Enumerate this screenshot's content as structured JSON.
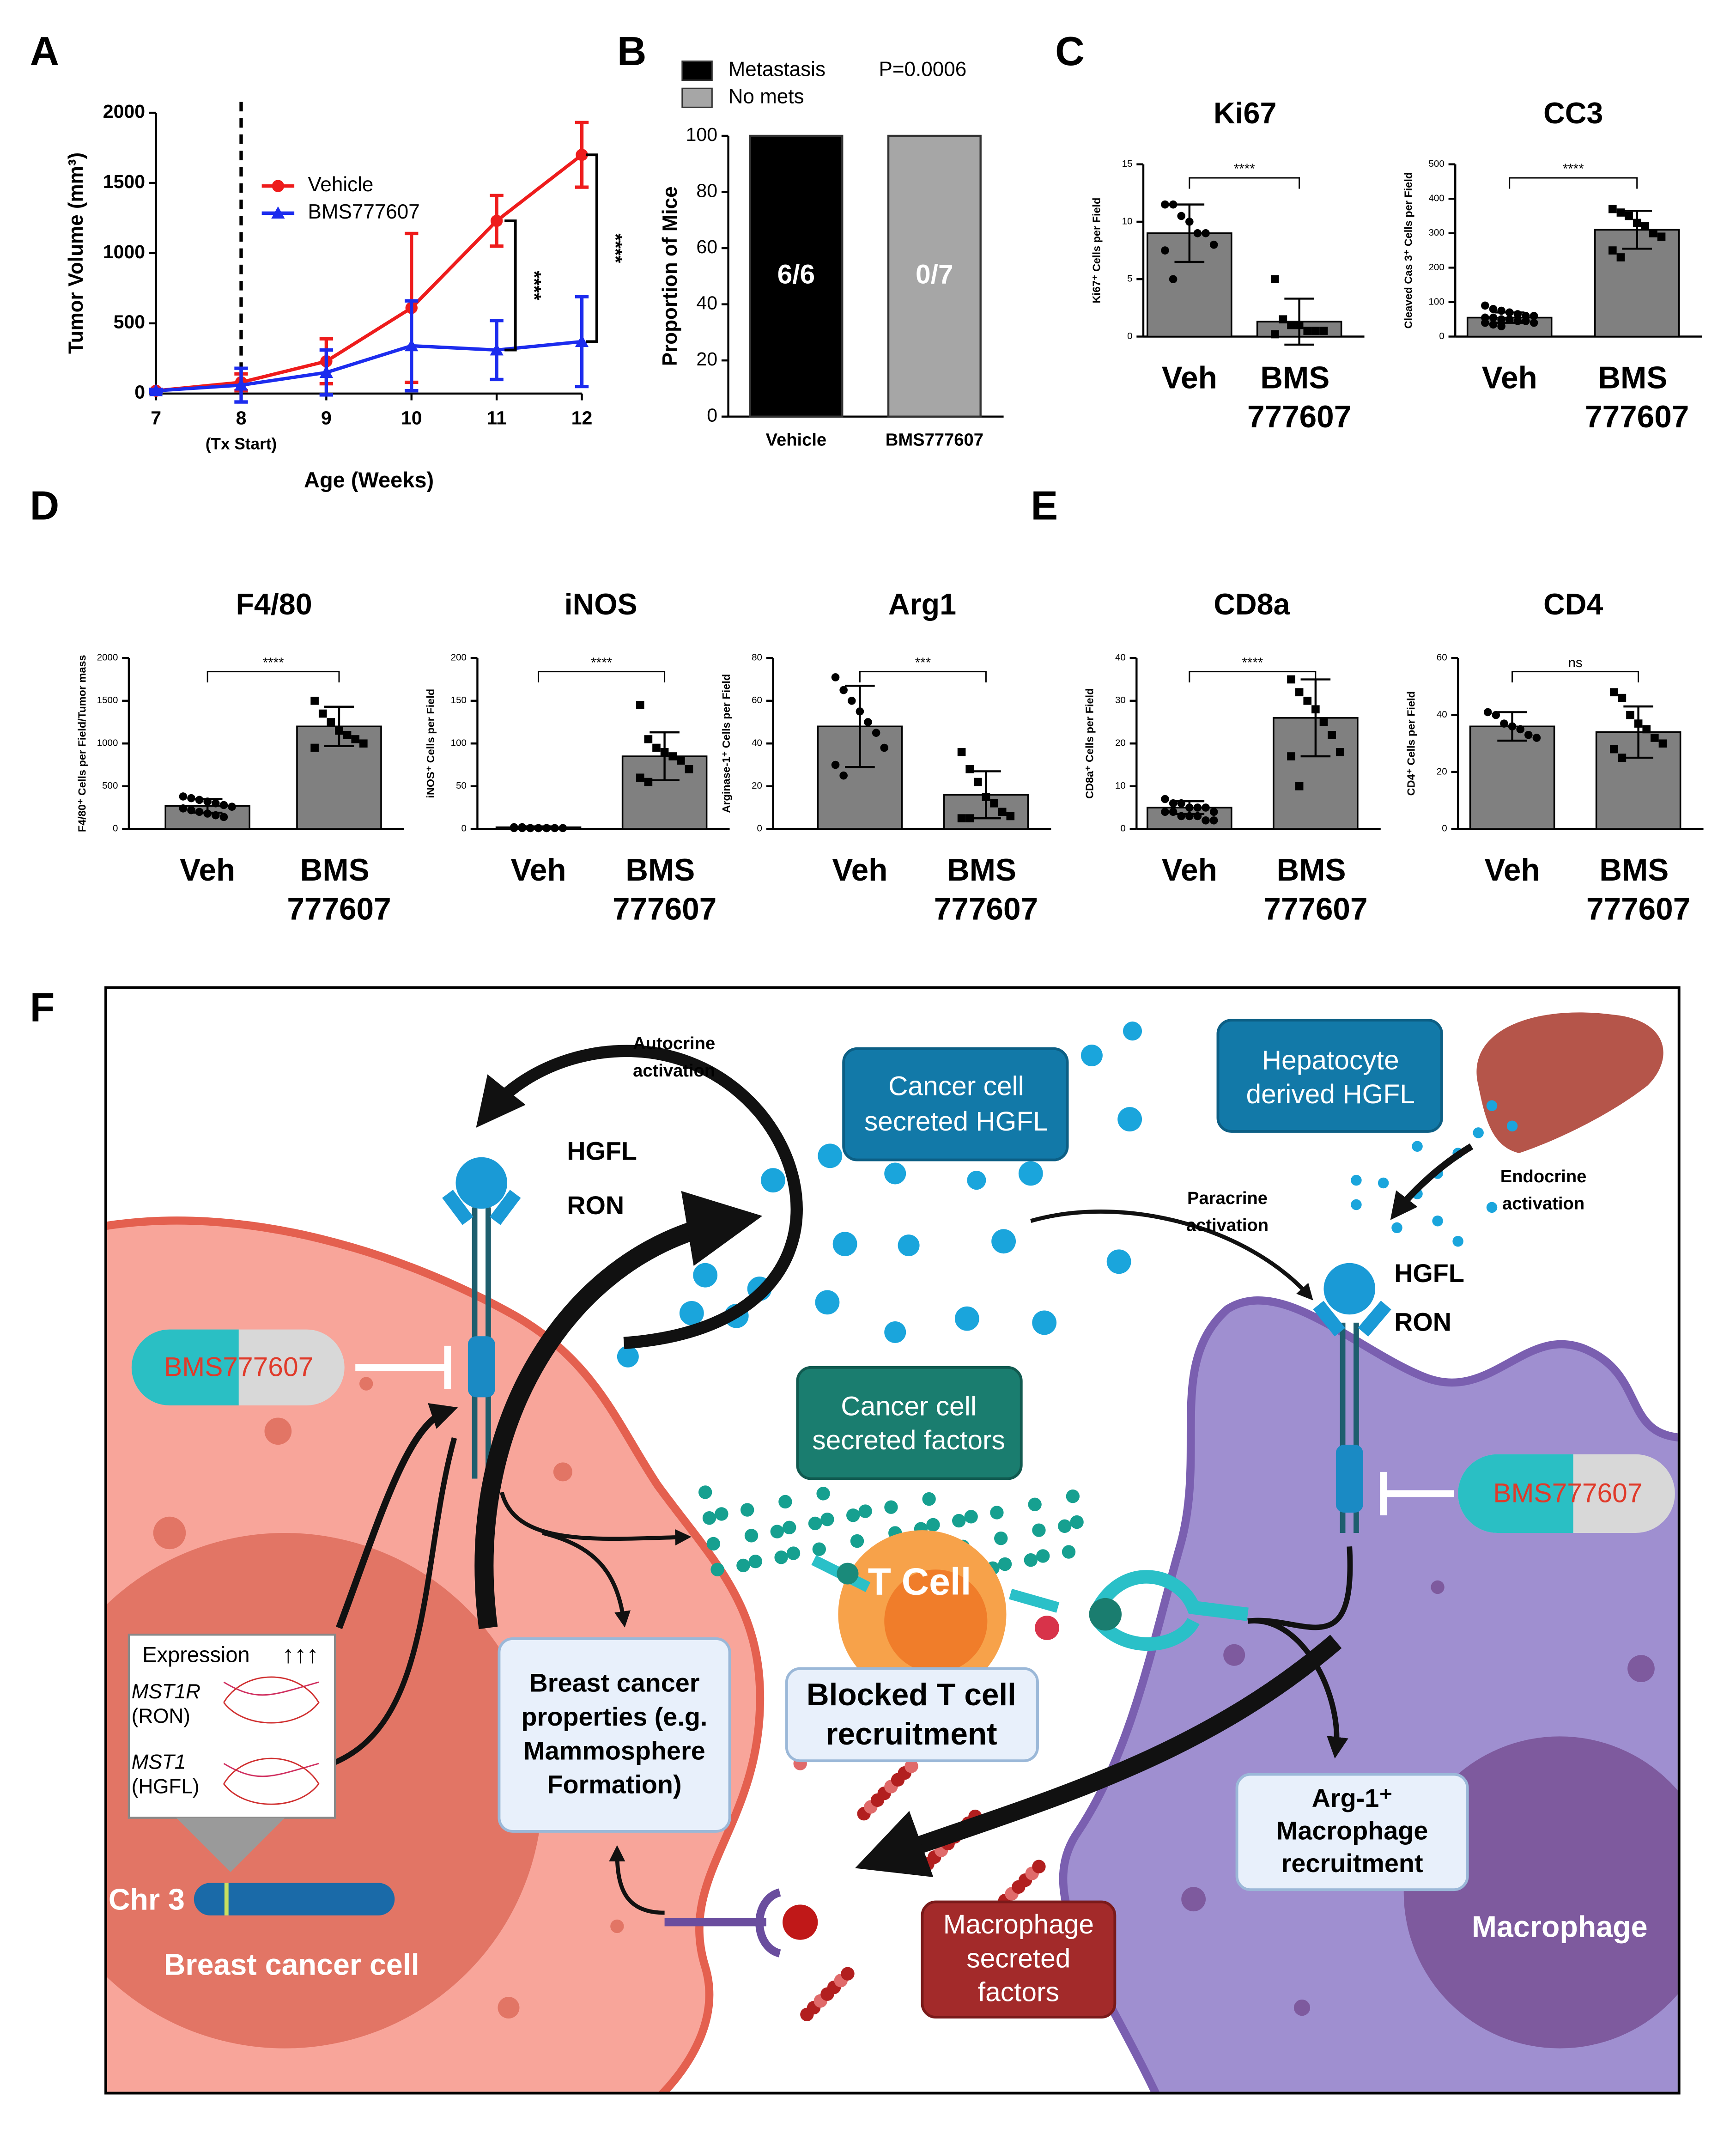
{
  "panel_labels": [
    "A",
    "B",
    "C",
    "D",
    "E",
    "F"
  ],
  "chart_data": [
    {
      "type": "line",
      "ylabel": "Tumor Volume (mm³)",
      "xlabel": "Age (Weeks)",
      "x": [
        7,
        8,
        9,
        10,
        11,
        12
      ],
      "xlim": [
        7,
        12
      ],
      "xticks": [
        7,
        8,
        9,
        10,
        11,
        12
      ],
      "ylim": [
        0,
        2000
      ],
      "yticks": [
        0,
        500,
        1000,
        1500,
        2000
      ],
      "annotations": [
        "(Tx Start)"
      ],
      "significance": [
        "****",
        "****"
      ],
      "series": [
        {
          "name": "Vehicle",
          "color": "#ee1c1c",
          "marker": "circle",
          "values": [
            20,
            80,
            230,
            610,
            1230,
            1700
          ],
          "errors": [
            10,
            60,
            160,
            530,
            180,
            230
          ]
        },
        {
          "name": "BMS777607",
          "color": "#1c2cee",
          "marker": "triangle",
          "values": [
            20,
            60,
            150,
            340,
            310,
            370
          ],
          "errors": [
            10,
            120,
            160,
            320,
            210,
            320
          ]
        }
      ]
    },
    {
      "type": "stacked_bar",
      "ylabel": "Proportion of Mice",
      "categories": [
        "Vehicle",
        "BMS777607"
      ],
      "ylim": [
        0,
        100
      ],
      "yticks": [
        0,
        20,
        40,
        60,
        80,
        100
      ],
      "annotations": [
        "P=0.0006"
      ],
      "bar_labels": [
        "6/6",
        "0/7"
      ],
      "series": [
        {
          "name": "Metastasis",
          "color": "#000000",
          "values": [
            100,
            0
          ]
        },
        {
          "name": "No mets",
          "color": "#a6a6a6",
          "values": [
            0,
            100
          ]
        }
      ]
    },
    {
      "type": "bar",
      "title": "Ki67",
      "ylabel": "Ki67⁺ Cells per Field",
      "categories": [
        "Veh",
        "BMS 777607"
      ],
      "color": "#808080",
      "values": [
        9,
        1.3
      ],
      "errors": [
        2.5,
        2
      ],
      "ylim": [
        0,
        15
      ],
      "yticks": [
        0,
        5,
        10,
        15
      ],
      "significance": "****",
      "points": [
        [
          11.5,
          11.5,
          10.5,
          10,
          9,
          9,
          8,
          7.5,
          5
        ],
        [
          5,
          1.5,
          1,
          1,
          0.5,
          0.5,
          0.5,
          0.2
        ]
      ]
    },
    {
      "type": "bar",
      "title": "CC3",
      "ylabel": "Cleaved Cas 3⁺ Cells per Field",
      "categories": [
        "Veh",
        "BMS 777607"
      ],
      "color": "#808080",
      "values": [
        55,
        310
      ],
      "errors": [
        15,
        55
      ],
      "ylim": [
        0,
        500
      ],
      "yticks": [
        0,
        100,
        200,
        300,
        400,
        500
      ],
      "significance": "****",
      "points": [
        [
          90,
          80,
          75,
          70,
          65,
          60,
          60,
          55,
          55,
          50,
          50,
          45,
          45,
          40,
          40,
          35,
          30
        ],
        [
          370,
          360,
          350,
          330,
          320,
          300,
          290,
          250,
          230
        ]
      ]
    },
    {
      "type": "bar",
      "title": "F4/80",
      "ylabel": "F4/80⁺ Cells per Field/Tumor mass",
      "categories": [
        "Veh",
        "BMS 777607"
      ],
      "color": "#808080",
      "values": [
        270,
        1200
      ],
      "errors": [
        80,
        230
      ],
      "ylim": [
        0,
        2000
      ],
      "yticks": [
        0,
        500,
        1000,
        1500,
        2000
      ],
      "significance": "****",
      "points": [
        [
          380,
          360,
          340,
          320,
          300,
          280,
          260,
          240,
          220,
          200,
          180,
          160,
          140
        ],
        [
          1500,
          1350,
          1250,
          1150,
          1100,
          1050,
          1000,
          950
        ]
      ]
    },
    {
      "type": "bar",
      "title": "iNOS",
      "ylabel": "iNOS⁺ Cells per Field",
      "categories": [
        "Veh",
        "BMS 777607"
      ],
      "color": "#808080",
      "values": [
        2,
        85
      ],
      "errors": [
        1,
        28
      ],
      "ylim": [
        0,
        200
      ],
      "yticks": [
        0,
        50,
        100,
        150,
        200
      ],
      "significance": "****",
      "points": [
        [
          2,
          2,
          1,
          1,
          1,
          1,
          1,
          1,
          1,
          1,
          1,
          1
        ],
        [
          145,
          105,
          95,
          90,
          85,
          80,
          70,
          60,
          55
        ]
      ]
    },
    {
      "type": "bar",
      "title": "Arg1",
      "ylabel": "Arginase-1⁺ Cells per Field",
      "categories": [
        "Veh",
        "BMS 777607"
      ],
      "color": "#808080",
      "values": [
        48,
        16
      ],
      "errors": [
        19,
        11
      ],
      "ylim": [
        0,
        80
      ],
      "yticks": [
        0,
        20,
        40,
        60,
        80
      ],
      "significance": "***",
      "points": [
        [
          71,
          65,
          60,
          55,
          50,
          45,
          38,
          30,
          25
        ],
        [
          36,
          28,
          22,
          15,
          12,
          8,
          6,
          5,
          5
        ]
      ]
    },
    {
      "type": "bar",
      "title": "CD8a",
      "ylabel": "CD8a⁺ Cells per Field",
      "categories": [
        "Veh",
        "BMS 777607"
      ],
      "color": "#808080",
      "values": [
        5,
        26
      ],
      "errors": [
        1.5,
        9
      ],
      "ylim": [
        0,
        40
      ],
      "yticks": [
        0,
        10,
        20,
        30,
        40
      ],
      "significance": "****",
      "points": [
        [
          7,
          6,
          6,
          5,
          5,
          5,
          4,
          4,
          4,
          3,
          3,
          3,
          2,
          2
        ],
        [
          35,
          32,
          30,
          28,
          25,
          22,
          18,
          17,
          10
        ]
      ]
    },
    {
      "type": "bar",
      "title": "CD4",
      "ylabel": "CD4⁺ Cells per Field",
      "categories": [
        "Veh",
        "BMS 777607"
      ],
      "color": "#808080",
      "values": [
        36,
        34
      ],
      "errors": [
        5,
        9
      ],
      "ylim": [
        0,
        60
      ],
      "yticks": [
        0,
        20,
        40,
        60
      ],
      "significance": "ns",
      "points": [
        [
          41,
          40,
          37,
          36,
          35,
          33,
          32
        ],
        [
          48,
          46,
          40,
          37,
          35,
          32,
          30,
          28,
          25
        ]
      ]
    }
  ],
  "diagram": {
    "autocrine": [
      "Autocrine",
      "activation"
    ],
    "cancer_hgfl": [
      "Cancer cell",
      "secreted HGFL"
    ],
    "hepatocyte_hgfl": [
      "Hepatocyte",
      "derived HGFL"
    ],
    "tumor_receptor": [
      "HGFL",
      "RON"
    ],
    "paracrine": [
      "Paracrine",
      "activation"
    ],
    "endocrine": [
      "Endocrine",
      "activation"
    ],
    "macrophage_receptor": [
      "HGFL",
      "RON"
    ],
    "drug_left": "BMS777607",
    "drug_right": "BMS777607",
    "cancer_factors": [
      "Cancer cell",
      "secreted factors"
    ],
    "t_cell": "T Cell",
    "blocked": [
      "Blocked T cell",
      "recruitment"
    ],
    "properties": [
      "Breast cancer",
      "properties (e.g.",
      "Mammosphere",
      "Formation)"
    ],
    "expression": "Expression",
    "genes": [
      "MST1R",
      "(RON)",
      "MST1",
      "(HGFL)"
    ],
    "chromosome": "Chr 3",
    "cancer_cell": "Breast cancer cell",
    "arg1": [
      "Arg-1⁺",
      "Macrophage",
      "recruitment"
    ],
    "macrophage": "Macrophage",
    "macrophage_factors": [
      "Macrophage",
      "secreted",
      "factors"
    ]
  }
}
